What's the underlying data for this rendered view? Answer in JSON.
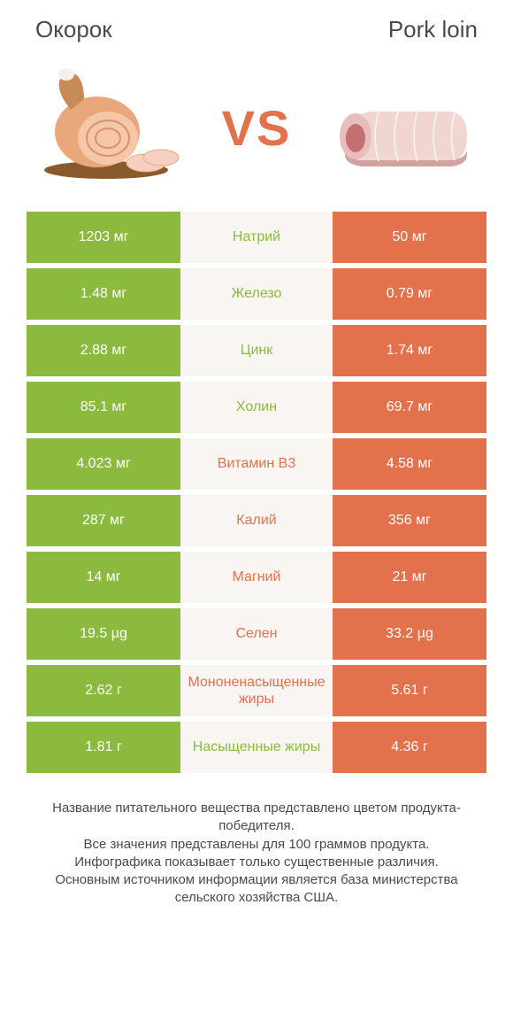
{
  "header": {
    "left_title": "Окорок",
    "right_title": "Pork loin",
    "vs_label": "VS"
  },
  "colors": {
    "left": "#8bba3e",
    "right": "#e2714c",
    "row_bg": "#f8f5f2",
    "text_mid": "#4a4a4a"
  },
  "rows": [
    {
      "left": "1203 мг",
      "label": "Натрий",
      "right": "50 мг",
      "winner": "left"
    },
    {
      "left": "1.48 мг",
      "label": "Железо",
      "right": "0.79 мг",
      "winner": "left"
    },
    {
      "left": "2.88 мг",
      "label": "Цинк",
      "right": "1.74 мг",
      "winner": "left"
    },
    {
      "left": "85.1 мг",
      "label": "Холин",
      "right": "69.7 мг",
      "winner": "left"
    },
    {
      "left": "4.023 мг",
      "label": "Витамин B3",
      "right": "4.58 мг",
      "winner": "right"
    },
    {
      "left": "287 мг",
      "label": "Калий",
      "right": "356 мг",
      "winner": "right"
    },
    {
      "left": "14 мг",
      "label": "Магний",
      "right": "21 мг",
      "winner": "right"
    },
    {
      "left": "19.5 µg",
      "label": "Селен",
      "right": "33.2 µg",
      "winner": "right"
    },
    {
      "left": "2.62 г",
      "label": "Мононенасыщенные жиры",
      "right": "5.61 г",
      "winner": "right"
    },
    {
      "left": "1.81 г",
      "label": "Насыщенные жиры",
      "right": "4.36 г",
      "winner": "left"
    }
  ],
  "footnote": "Название питательного вещества представлено цветом продукта-победителя.\nВсе значения представлены для 100 граммов продукта.\nИнфографика показывает только существенные различия.\nОсновным источником информации является база министерства сельского хозяйства США."
}
